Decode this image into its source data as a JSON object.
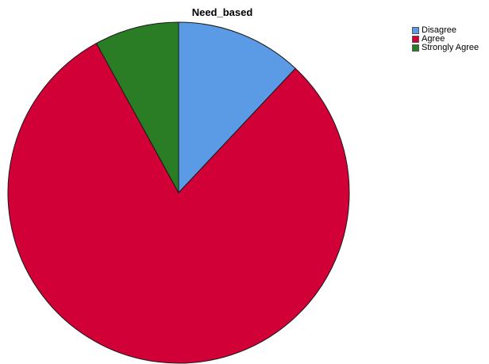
{
  "chart_data": {
    "type": "pie",
    "title": "Need_based",
    "categories": [
      "Disagree",
      "Agree",
      "Strongly Agree"
    ],
    "values": [
      12,
      80,
      8
    ],
    "colors": [
      "#5b9ae5",
      "#d10036",
      "#2a7d24"
    ],
    "legend_position": "top-right",
    "start_angle": "12 o'clock",
    "direction": "clockwise"
  }
}
